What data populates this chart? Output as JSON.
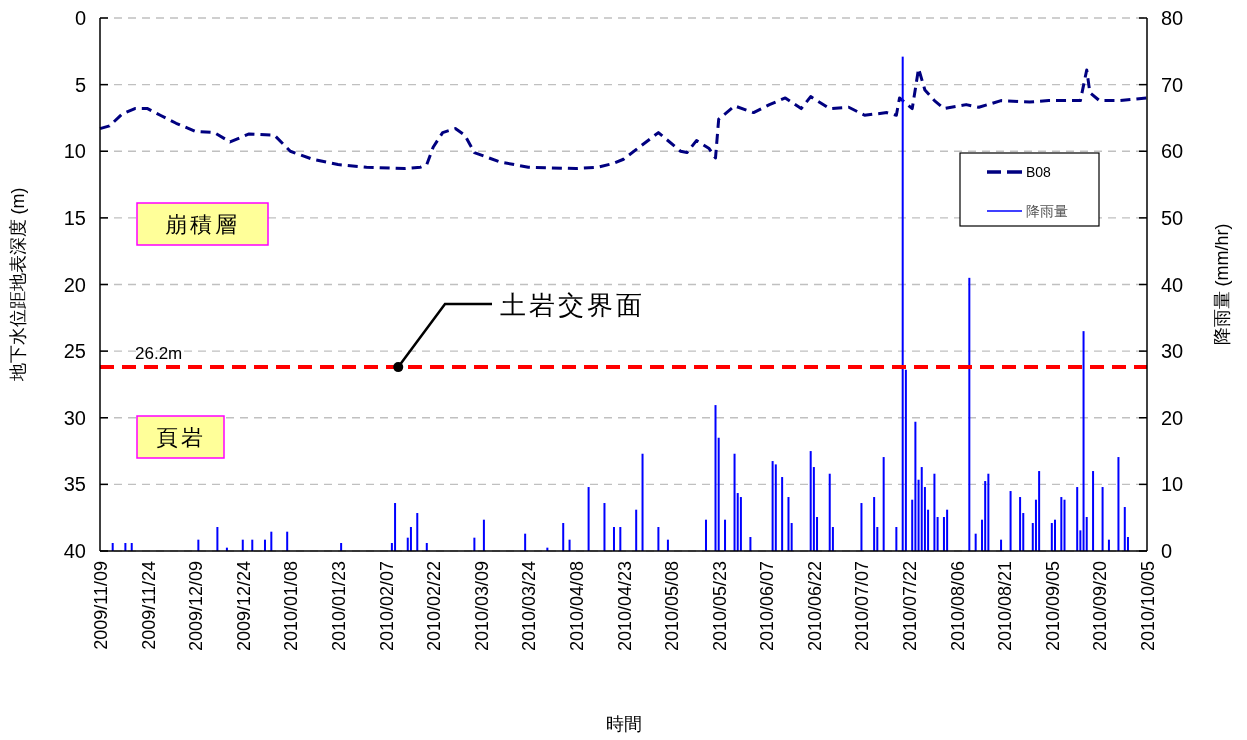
{
  "chart_data": {
    "type": "line",
    "xlabel": "時間",
    "ylabel": "地下水位距地表深度 (m)",
    "y2label": "降雨量 (mm/hr)",
    "xlim": [
      "2009-11-09",
      "2010-10-05"
    ],
    "xticks": [
      {
        "value": "2009-11-09",
        "label": "2009/11/09"
      },
      {
        "value": "2009-11-24",
        "label": "2009/11/24"
      },
      {
        "value": "2009-12-09",
        "label": "2009/12/09"
      },
      {
        "value": "2009-12-24",
        "label": "2009/12/24"
      },
      {
        "value": "2010-01-08",
        "label": "2010/01/08"
      },
      {
        "value": "2010-01-23",
        "label": "2010/01/23"
      },
      {
        "value": "2010-02-07",
        "label": "2010/02/07"
      },
      {
        "value": "2010-02-22",
        "label": "2010/02/22"
      },
      {
        "value": "2010-03-09",
        "label": "2010/03/09"
      },
      {
        "value": "2010-03-24",
        "label": "2010/03/24"
      },
      {
        "value": "2010-04-08",
        "label": "2010/04/08"
      },
      {
        "value": "2010-04-23",
        "label": "2010/04/23"
      },
      {
        "value": "2010-05-08",
        "label": "2010/05/08"
      },
      {
        "value": "2010-05-23",
        "label": "2010/05/23"
      },
      {
        "value": "2010-06-07",
        "label": "2010/06/07"
      },
      {
        "value": "2010-06-22",
        "label": "2010/06/22"
      },
      {
        "value": "2010-07-07",
        "label": "2010/07/07"
      },
      {
        "value": "2010-07-22",
        "label": "2010/07/22"
      },
      {
        "value": "2010-08-06",
        "label": "2010/08/06"
      },
      {
        "value": "2010-08-21",
        "label": "2010/08/21"
      },
      {
        "value": "2010-09-05",
        "label": "2010/09/05"
      },
      {
        "value": "2010-09-20",
        "label": "2010/09/20"
      },
      {
        "value": "2010-10-05",
        "label": "2010/10/05"
      }
    ],
    "ylim": [
      40,
      0
    ],
    "yticks": [
      0,
      5,
      10,
      15,
      20,
      25,
      30,
      35,
      40
    ],
    "y2lim": [
      0,
      80
    ],
    "y2ticks": [
      0,
      10,
      20,
      30,
      40,
      50,
      60,
      70,
      80
    ],
    "grid": "y",
    "legend": "right",
    "line_style": "dashed",
    "series": [
      {
        "name": "B08",
        "color": "#000080",
        "x": [
          "2009-11-09",
          "2009-11-12",
          "2009-11-16",
          "2009-11-20",
          "2009-11-24",
          "2009-11-28",
          "2009-12-03",
          "2009-12-09",
          "2009-12-15",
          "2009-12-20",
          "2009-12-26",
          "2010-01-03",
          "2010-01-08",
          "2010-01-15",
          "2010-01-23",
          "2010-02-01",
          "2010-02-13",
          "2010-02-18",
          "2010-02-20",
          "2010-02-22",
          "2010-02-25",
          "2010-03-01",
          "2010-03-04",
          "2010-03-07",
          "2010-03-15",
          "2010-03-24",
          "2010-04-08",
          "2010-04-15",
          "2010-04-20",
          "2010-04-23",
          "2010-05-04",
          "2010-05-11",
          "2010-05-13",
          "2010-05-16",
          "2010-05-20",
          "2010-05-22",
          "2010-05-23",
          "2010-05-28",
          "2010-06-03",
          "2010-06-08",
          "2010-06-13",
          "2010-06-18",
          "2010-06-21",
          "2010-06-27",
          "2010-07-03",
          "2010-07-08",
          "2010-07-15",
          "2010-07-18",
          "2010-07-19",
          "2010-07-23",
          "2010-07-25",
          "2010-07-27",
          "2010-07-30",
          "2010-08-02",
          "2010-08-09",
          "2010-08-13",
          "2010-08-20",
          "2010-08-29",
          "2010-09-04",
          "2010-09-14",
          "2010-09-16",
          "2010-09-17",
          "2010-09-20",
          "2010-09-26",
          "2010-10-05"
        ],
        "values": [
          8.3,
          8.1,
          7.2,
          6.8,
          6.8,
          7.3,
          7.9,
          8.5,
          8.6,
          9.3,
          8.7,
          8.8,
          10.0,
          10.6,
          11.0,
          11.2,
          11.3,
          11.2,
          11.0,
          9.7,
          8.6,
          8.3,
          8.8,
          10.1,
          10.8,
          11.2,
          11.3,
          11.2,
          10.9,
          10.6,
          8.6,
          10.0,
          10.1,
          9.2,
          9.8,
          10.5,
          7.6,
          6.6,
          7.1,
          6.5,
          6.0,
          6.8,
          5.9,
          6.8,
          6.7,
          7.3,
          7.1,
          7.3,
          6.0,
          6.8,
          3.8,
          5.4,
          6.2,
          6.8,
          6.5,
          6.7,
          6.2,
          6.3,
          6.2,
          6.2,
          3.9,
          5.6,
          6.2,
          6.2,
          6.0
        ]
      },
      {
        "name": "降雨量",
        "type": "bar",
        "axis": "y2",
        "color": "#0000ff",
        "x": [
          "2009-11-13",
          "2009-11-17",
          "2009-11-19",
          "2009-12-10",
          "2009-12-16",
          "2009-12-19",
          "2009-12-24",
          "2009-12-27",
          "2009-12-31",
          "2010-01-02",
          "2010-01-07",
          "2010-01-24",
          "2010-02-09",
          "2010-02-10",
          "2010-02-14",
          "2010-02-15",
          "2010-02-17",
          "2010-02-20",
          "2010-03-07",
          "2010-03-10",
          "2010-03-23",
          "2010-03-30",
          "2010-04-04",
          "2010-04-06",
          "2010-04-12",
          "2010-04-17",
          "2010-04-20",
          "2010-04-22",
          "2010-04-27",
          "2010-04-29",
          "2010-05-04",
          "2010-05-07",
          "2010-05-19",
          "2010-05-22",
          "2010-05-23",
          "2010-05-25",
          "2010-05-28",
          "2010-05-29",
          "2010-05-30",
          "2010-06-02",
          "2010-06-09",
          "2010-06-10",
          "2010-06-12",
          "2010-06-14",
          "2010-06-15",
          "2010-06-21",
          "2010-06-22",
          "2010-06-23",
          "2010-06-27",
          "2010-06-28",
          "2010-07-07",
          "2010-07-11",
          "2010-07-12",
          "2010-07-14",
          "2010-07-18",
          "2010-07-20",
          "2010-07-21",
          "2010-07-23",
          "2010-07-24",
          "2010-07-25",
          "2010-07-26",
          "2010-07-27",
          "2010-07-28",
          "2010-07-30",
          "2010-07-31",
          "2010-08-02",
          "2010-08-03",
          "2010-08-10",
          "2010-08-12",
          "2010-08-14",
          "2010-08-15",
          "2010-08-16",
          "2010-08-20",
          "2010-08-23",
          "2010-08-26",
          "2010-08-27",
          "2010-08-30",
          "2010-08-31",
          "2010-09-01",
          "2010-09-05",
          "2010-09-06",
          "2010-09-08",
          "2010-09-09",
          "2010-09-13",
          "2010-09-14",
          "2010-09-15",
          "2010-09-16",
          "2010-09-18",
          "2010-09-21",
          "2010-09-23",
          "2010-09-26",
          "2010-09-28",
          "2010-09-29"
        ],
        "values": [
          1.2,
          1.2,
          1.2,
          1.7,
          3.6,
          0.5,
          1.7,
          1.7,
          1.7,
          2.9,
          2.9,
          1.2,
          1.2,
          7.2,
          2,
          3.6,
          5.7,
          1.2,
          2,
          4.7,
          2.6,
          0.5,
          4.2,
          1.7,
          9.6,
          7.2,
          3.6,
          3.6,
          6.2,
          14.6,
          3.6,
          1.7,
          4.7,
          21.9,
          17,
          4.7,
          14.6,
          8.7,
          8.1,
          2.1,
          13.5,
          13,
          11.1,
          8.1,
          4.2,
          15,
          12.6,
          5.1,
          11.6,
          3.6,
          7.2,
          8.1,
          3.6,
          14.1,
          3.6,
          74.2,
          27.2,
          7.7,
          19.4,
          10.7,
          12.6,
          9.6,
          6.2,
          11.6,
          5.1,
          5.1,
          6.2,
          41.0,
          2.6,
          4.7,
          10.5,
          11.6,
          1.7,
          9.0,
          8.1,
          5.7,
          4.2,
          7.7,
          12.0,
          4.2,
          4.7,
          8.1,
          7.7,
          9.6,
          3.1,
          33.0,
          5.1,
          12.0,
          9.6,
          1.7,
          14.1,
          6.6,
          2.1
        ]
      }
    ],
    "ref_lines": [
      {
        "axis": "y",
        "value": 26.2,
        "label": "26.2m",
        "color": "#ff0000",
        "line_style": "dashed"
      }
    ],
    "annotations": [
      "崩積層",
      "頁岩",
      {
        "text": "土岩交界面",
        "x": "2010-02-11",
        "y": 26.2
      }
    ]
  }
}
